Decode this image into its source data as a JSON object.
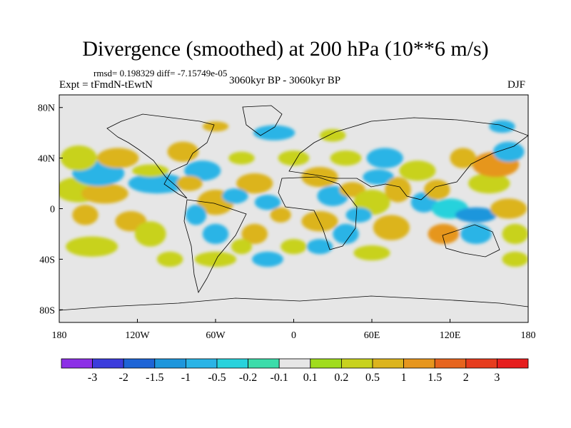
{
  "header": {
    "title": "Divergence (smoothed) at 200 hPa (10**6 m/s)",
    "stats": "rmsd= 0.198329 diff= -7.15749e-05",
    "experiment": "Expt = tFmdN-tEwtN",
    "period": "3060kyr BP - 3060kyr BP",
    "season": "DJF"
  },
  "chart_data": {
    "type": "heatmap",
    "title": "Divergence (smoothed) at 200 hPa (10**6 m/s)",
    "xlabel": "",
    "ylabel": "",
    "xlim": [
      -180,
      180
    ],
    "ylim": [
      -90,
      90
    ],
    "x_ticks": [
      {
        "value": -180,
        "label": "180"
      },
      {
        "value": -120,
        "label": "120W"
      },
      {
        "value": -60,
        "label": "60W"
      },
      {
        "value": 0,
        "label": "0"
      },
      {
        "value": 60,
        "label": "60E"
      },
      {
        "value": 120,
        "label": "120E"
      },
      {
        "value": 180,
        "label": "180"
      }
    ],
    "y_ticks": [
      {
        "value": 80,
        "label": "80N"
      },
      {
        "value": 40,
        "label": "40N"
      },
      {
        "value": 0,
        "label": "0"
      },
      {
        "value": -40,
        "label": "40S"
      },
      {
        "value": -80,
        "label": "80S"
      }
    ],
    "colorbar": {
      "colors": [
        "#8c2fe6",
        "#3c3cdc",
        "#1e64d6",
        "#1e96dc",
        "#2ab4e6",
        "#28d2dc",
        "#3cdcaa",
        "#e6e6e6",
        "#a0dc1e",
        "#c8d21e",
        "#dcb41e",
        "#e6961e",
        "#e6641e",
        "#e63c1e",
        "#e61e1e"
      ],
      "labels": [
        "-3",
        "-2",
        "-1.5",
        "-1",
        "-0.5",
        "-0.2",
        "-0.1",
        "0.1",
        "0.2",
        "0.5",
        "1",
        "1.5",
        "2",
        "3"
      ]
    },
    "patches": [
      {
        "lon": -165,
        "lat": 15,
        "rx": 18,
        "ry": 10,
        "bin": 9
      },
      {
        "lon": -145,
        "lat": 12,
        "rx": 18,
        "ry": 8,
        "bin": 10
      },
      {
        "lon": -150,
        "lat": 28,
        "rx": 20,
        "ry": 10,
        "bin": 4
      },
      {
        "lon": -165,
        "lat": 40,
        "rx": 14,
        "ry": 10,
        "bin": 9
      },
      {
        "lon": -135,
        "lat": 40,
        "rx": 16,
        "ry": 8,
        "bin": 10
      },
      {
        "lon": -105,
        "lat": 20,
        "rx": 22,
        "ry": 8,
        "bin": 4
      },
      {
        "lon": -110,
        "lat": 30,
        "rx": 14,
        "ry": 5,
        "bin": 9
      },
      {
        "lon": -160,
        "lat": -5,
        "rx": 10,
        "ry": 8,
        "bin": 10
      },
      {
        "lon": -125,
        "lat": -10,
        "rx": 12,
        "ry": 8,
        "bin": 10
      },
      {
        "lon": -110,
        "lat": -20,
        "rx": 12,
        "ry": 10,
        "bin": 9
      },
      {
        "lon": -155,
        "lat": -30,
        "rx": 20,
        "ry": 8,
        "bin": 9
      },
      {
        "lon": -85,
        "lat": 45,
        "rx": 12,
        "ry": 8,
        "bin": 10
      },
      {
        "lon": -70,
        "lat": 30,
        "rx": 14,
        "ry": 8,
        "bin": 4
      },
      {
        "lon": -60,
        "lat": 5,
        "rx": 14,
        "ry": 10,
        "bin": 10
      },
      {
        "lon": -75,
        "lat": -5,
        "rx": 8,
        "ry": 8,
        "bin": 4
      },
      {
        "lon": -80,
        "lat": 20,
        "rx": 10,
        "ry": 6,
        "bin": 10
      },
      {
        "lon": -60,
        "lat": -20,
        "rx": 10,
        "ry": 8,
        "bin": 4
      },
      {
        "lon": -95,
        "lat": -40,
        "rx": 10,
        "ry": 6,
        "bin": 9
      },
      {
        "lon": -60,
        "lat": -40,
        "rx": 16,
        "ry": 6,
        "bin": 9
      },
      {
        "lon": -40,
        "lat": 40,
        "rx": 10,
        "ry": 5,
        "bin": 9
      },
      {
        "lon": -30,
        "lat": 20,
        "rx": 14,
        "ry": 8,
        "bin": 10
      },
      {
        "lon": -45,
        "lat": 10,
        "rx": 10,
        "ry": 6,
        "bin": 4
      },
      {
        "lon": -20,
        "lat": 5,
        "rx": 10,
        "ry": 6,
        "bin": 4
      },
      {
        "lon": -30,
        "lat": -20,
        "rx": 10,
        "ry": 8,
        "bin": 10
      },
      {
        "lon": -40,
        "lat": -30,
        "rx": 8,
        "ry": 6,
        "bin": 9
      },
      {
        "lon": -20,
        "lat": -40,
        "rx": 12,
        "ry": 6,
        "bin": 4
      },
      {
        "lon": 0,
        "lat": -30,
        "rx": 10,
        "ry": 6,
        "bin": 9
      },
      {
        "lon": -10,
        "lat": -5,
        "rx": 8,
        "ry": 6,
        "bin": 10
      },
      {
        "lon": 0,
        "lat": 40,
        "rx": 12,
        "ry": 6,
        "bin": 9
      },
      {
        "lon": 20,
        "lat": 25,
        "rx": 14,
        "ry": 8,
        "bin": 10
      },
      {
        "lon": 40,
        "lat": 40,
        "rx": 12,
        "ry": 6,
        "bin": 9
      },
      {
        "lon": 30,
        "lat": 10,
        "rx": 12,
        "ry": 8,
        "bin": 4
      },
      {
        "lon": 45,
        "lat": 15,
        "rx": 10,
        "ry": 6,
        "bin": 10
      },
      {
        "lon": 20,
        "lat": -10,
        "rx": 14,
        "ry": 8,
        "bin": 10
      },
      {
        "lon": 40,
        "lat": -20,
        "rx": 10,
        "ry": 8,
        "bin": 4
      },
      {
        "lon": 20,
        "lat": -30,
        "rx": 10,
        "ry": 6,
        "bin": 4
      },
      {
        "lon": 60,
        "lat": 5,
        "rx": 14,
        "ry": 10,
        "bin": 9
      },
      {
        "lon": 65,
        "lat": 25,
        "rx": 12,
        "ry": 6,
        "bin": 4
      },
      {
        "lon": 70,
        "lat": 40,
        "rx": 14,
        "ry": 8,
        "bin": 4
      },
      {
        "lon": 50,
        "lat": -5,
        "rx": 10,
        "ry": 6,
        "bin": 4
      },
      {
        "lon": 75,
        "lat": -15,
        "rx": 14,
        "ry": 10,
        "bin": 10
      },
      {
        "lon": 60,
        "lat": -35,
        "rx": 14,
        "ry": 6,
        "bin": 9
      },
      {
        "lon": 80,
        "lat": 15,
        "rx": 10,
        "ry": 10,
        "bin": 10
      },
      {
        "lon": 95,
        "lat": 30,
        "rx": 14,
        "ry": 8,
        "bin": 9
      },
      {
        "lon": 100,
        "lat": 5,
        "rx": 10,
        "ry": 8,
        "bin": 4
      },
      {
        "lon": 110,
        "lat": 15,
        "rx": 10,
        "ry": 8,
        "bin": 10
      },
      {
        "lon": 120,
        "lat": 0,
        "rx": 14,
        "ry": 8,
        "bin": 5
      },
      {
        "lon": 140,
        "lat": -5,
        "rx": 16,
        "ry": 6,
        "bin": 3
      },
      {
        "lon": 115,
        "lat": -20,
        "rx": 12,
        "ry": 8,
        "bin": 11
      },
      {
        "lon": 140,
        "lat": -20,
        "rx": 12,
        "ry": 8,
        "bin": 4
      },
      {
        "lon": 150,
        "lat": 20,
        "rx": 16,
        "ry": 8,
        "bin": 9
      },
      {
        "lon": 155,
        "lat": 35,
        "rx": 18,
        "ry": 10,
        "bin": 11
      },
      {
        "lon": 130,
        "lat": 40,
        "rx": 10,
        "ry": 8,
        "bin": 10
      },
      {
        "lon": 165,
        "lat": 45,
        "rx": 12,
        "ry": 8,
        "bin": 4
      },
      {
        "lon": 165,
        "lat": 0,
        "rx": 14,
        "ry": 8,
        "bin": 10
      },
      {
        "lon": 170,
        "lat": -20,
        "rx": 10,
        "ry": 8,
        "bin": 9
      },
      {
        "lon": 170,
        "lat": -40,
        "rx": 10,
        "ry": 6,
        "bin": 9
      },
      {
        "lon": 160,
        "lat": 65,
        "rx": 10,
        "ry": 5,
        "bin": 4
      },
      {
        "lon": -15,
        "lat": 60,
        "rx": 16,
        "ry": 6,
        "bin": 4
      },
      {
        "lon": 30,
        "lat": 58,
        "rx": 10,
        "ry": 5,
        "bin": 9
      },
      {
        "lon": -60,
        "lat": 65,
        "rx": 10,
        "ry": 4,
        "bin": 10
      }
    ]
  }
}
